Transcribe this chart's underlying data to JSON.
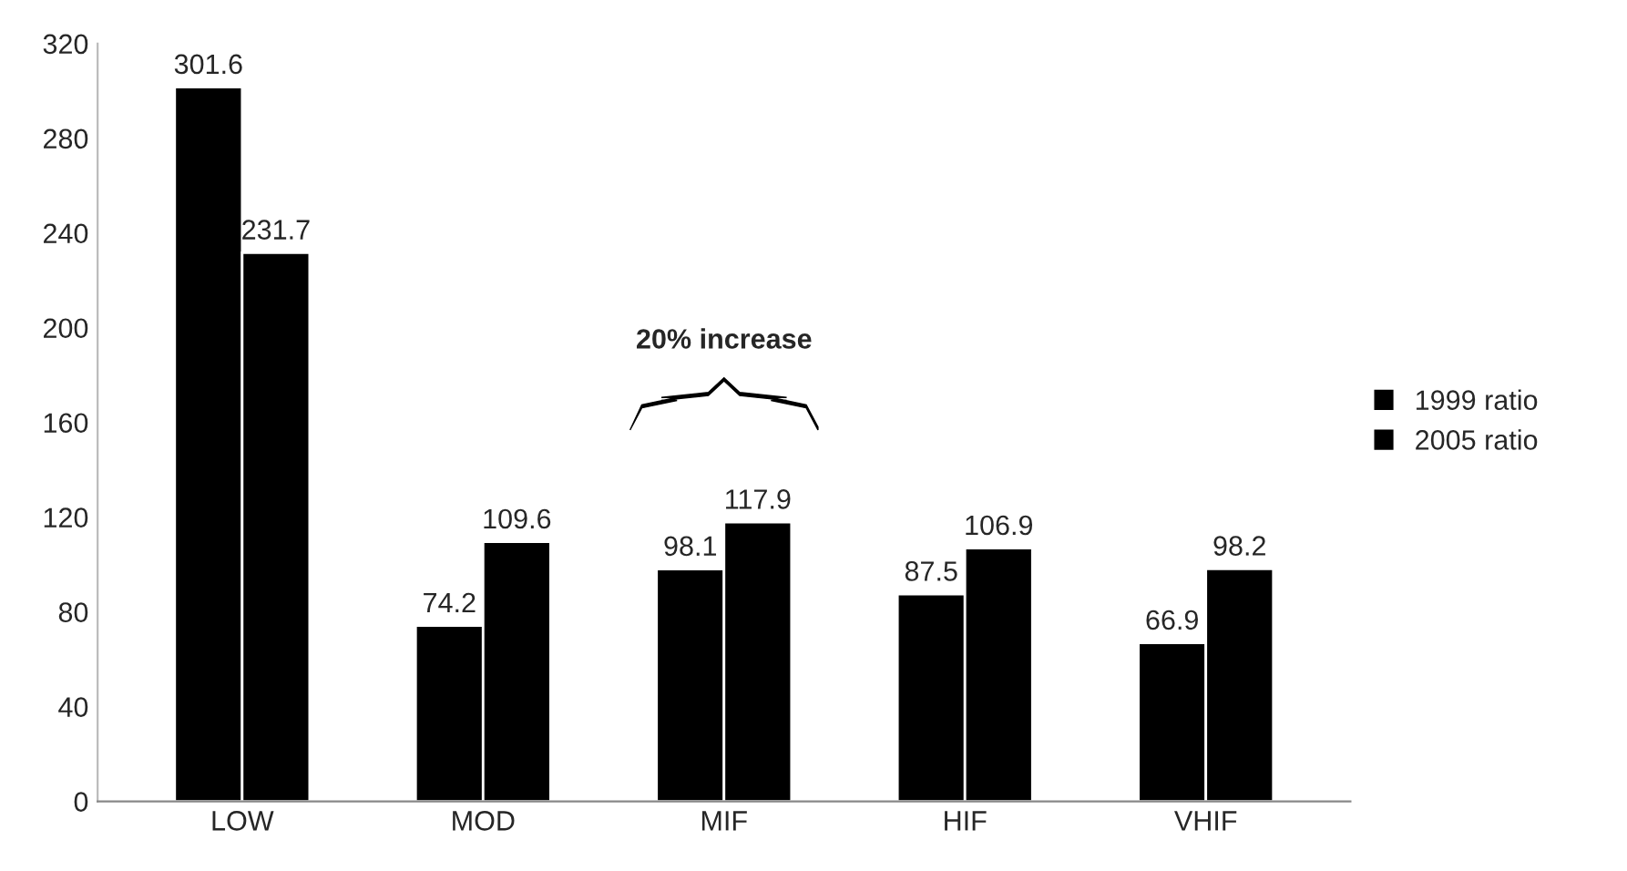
{
  "chart_data": {
    "type": "bar",
    "categories": [
      "LOW",
      "MOD",
      "MIF",
      "HIF",
      "VHIF"
    ],
    "series": [
      {
        "name": "1999 ratio",
        "color": "#000000",
        "values": [
          301.6,
          74.2,
          98.1,
          87.5,
          66.9
        ]
      },
      {
        "name": "2005 ratio",
        "color": "#000000",
        "values": [
          231.7,
          109.6,
          117.9,
          106.9,
          98.2
        ]
      }
    ],
    "ylim": [
      0,
      320
    ],
    "yticks": [
      0,
      40,
      80,
      120,
      160,
      200,
      240,
      280,
      320
    ],
    "data_labels": true,
    "legend": "right",
    "grid": false,
    "annotations": [
      "20% increase"
    ]
  }
}
